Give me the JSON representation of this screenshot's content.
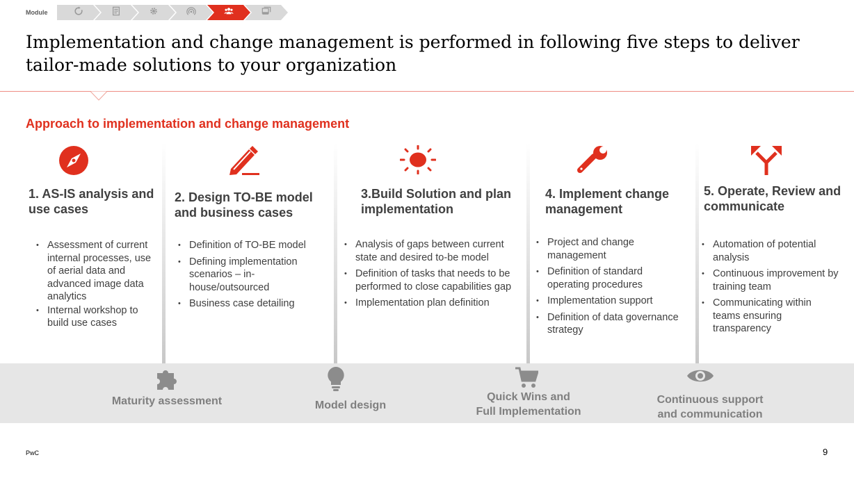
{
  "header": {
    "module_label": "Module",
    "modules": [
      {
        "icon": "refresh-icon",
        "active": false
      },
      {
        "icon": "checklist-icon",
        "active": false
      },
      {
        "icon": "gear-icon",
        "active": false
      },
      {
        "icon": "broadcast-icon",
        "active": false
      },
      {
        "icon": "people-icon",
        "active": true
      },
      {
        "icon": "layers-icon",
        "active": false
      }
    ]
  },
  "title": "Implementation and change management is performed in following five steps to deliver tailor-made solutions to your organization",
  "subtitle": "Approach to implementation and change management",
  "steps": [
    {
      "icon": "compass-icon",
      "heading": "1. AS-IS analysis and use cases",
      "bullets": [
        "Assessment of current internal processes, use of aerial data and advanced image data analytics",
        "Internal workshop to build use cases"
      ]
    },
    {
      "icon": "pencil-icon",
      "heading": "2. Design TO-BE model and business cases",
      "bullets": [
        "Definition of TO-BE model",
        "Defining implementation scenarios – in-house/outsourced",
        "Business case detailing"
      ]
    },
    {
      "icon": "sun-icon",
      "heading": "3.Build Solution and plan implementation",
      "bullets": [
        "Analysis of gaps between current state and desired to-be model",
        "Definition of tasks that needs to be performed to close capabilities gap",
        "Implementation plan definition"
      ]
    },
    {
      "icon": "wrench-icon",
      "heading": "4. Implement change management",
      "bullets": [
        "Project and change management",
        "Definition of standard operating procedures",
        "Implementation support",
        "Definition of data governance strategy"
      ]
    },
    {
      "icon": "split-arrow-icon",
      "heading": "5. Operate, Review and communicate",
      "bullets": [
        "Automation of potential analysis",
        "Continuous improvement by training team",
        "Communicating within teams ensuring transparency"
      ]
    }
  ],
  "phases": [
    {
      "icon": "puzzle-icon",
      "label": "Maturity assessment"
    },
    {
      "icon": "lightbulb-icon",
      "label": "Model design"
    },
    {
      "icon": "cart-icon",
      "label_line1": "Quick Wins and",
      "label_line2": "Full Implementation"
    },
    {
      "icon": "eye-icon",
      "label_line1": "Continuous support",
      "label_line2": "and communication"
    }
  ],
  "footer": {
    "brand": "PwC",
    "page_number": "9"
  },
  "colors": {
    "accent": "#e0301e",
    "module_inactive": "#d9d9d9",
    "band": "#e6e6e6",
    "band_text": "#7f7f7f",
    "body_text": "#404040"
  }
}
